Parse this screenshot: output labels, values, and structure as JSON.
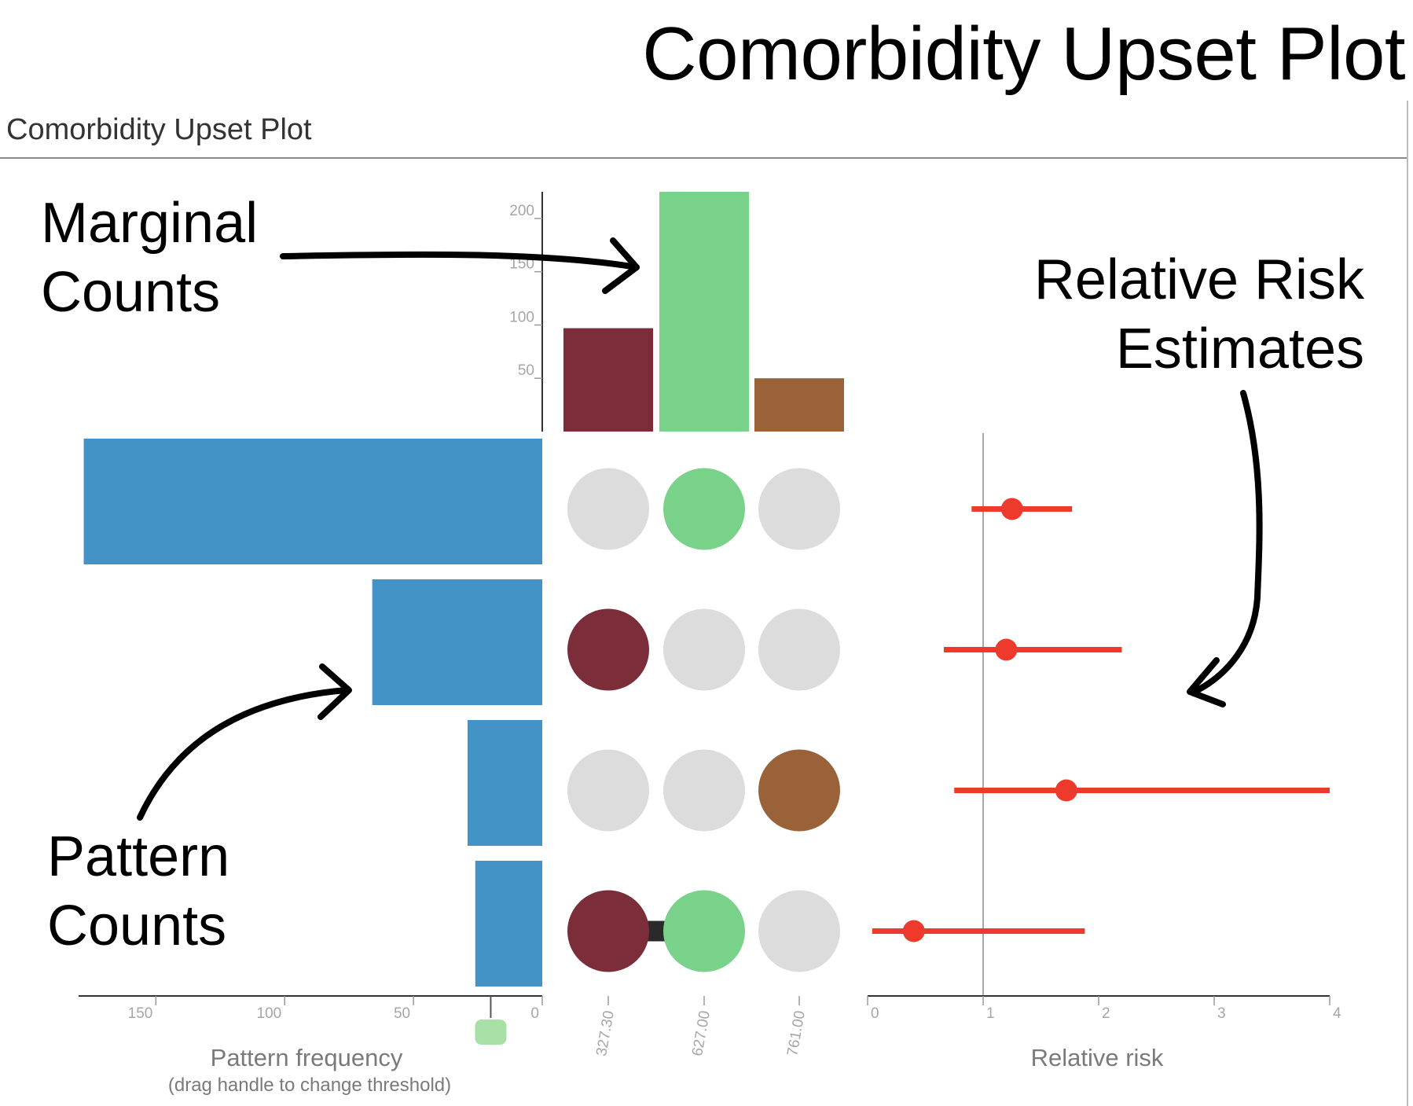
{
  "page_title": "Comorbidity Upset Plot",
  "panel_title": "Comorbidity Upset Plot",
  "annotations": {
    "marginal": "Marginal\nCounts",
    "pattern": "Pattern\nCounts",
    "risk": "Relative Risk\nEstimates"
  },
  "colors": {
    "set_a": "#7b2d3a",
    "set_b": "#79d28a",
    "set_c": "#9a6238",
    "pattern_bar": "#4493c6",
    "risk": "#ee3a2c",
    "inactive_dot": "#dcdcdc",
    "handle": "#a9e0a8",
    "connector": "#2a2a2a"
  },
  "chart_data": [
    {
      "type": "bar",
      "name": "marginal-counts",
      "categories": [
        "327.30",
        "627.00",
        "761.00"
      ],
      "values": [
        97,
        225,
        50
      ],
      "y_ticks": [
        50,
        100,
        150,
        200
      ],
      "ylim": [
        0,
        225
      ]
    },
    {
      "type": "bar",
      "name": "pattern-counts",
      "orientation": "horizontal",
      "patterns": [
        [
          0,
          1,
          0
        ],
        [
          1,
          0,
          0
        ],
        [
          0,
          0,
          1
        ],
        [
          1,
          1,
          0
        ]
      ],
      "values": [
        178,
        66,
        29,
        26
      ],
      "x_ticks": [
        150,
        100,
        50,
        0
      ],
      "threshold": 20,
      "xlabel": "Pattern frequency",
      "xlabel_sub": "(drag handle to change threshold)"
    },
    {
      "type": "scatter",
      "name": "relative-risk",
      "estimates": [
        1.25,
        1.2,
        1.72,
        0.4
      ],
      "lower": [
        0.9,
        0.66,
        0.75,
        0.04
      ],
      "upper": [
        1.77,
        2.2,
        4.0,
        1.88
      ],
      "x_ticks": [
        0,
        1,
        2,
        3,
        4
      ],
      "xlim": [
        0,
        4
      ],
      "reference_line": 1,
      "xlabel": "Relative risk"
    }
  ]
}
